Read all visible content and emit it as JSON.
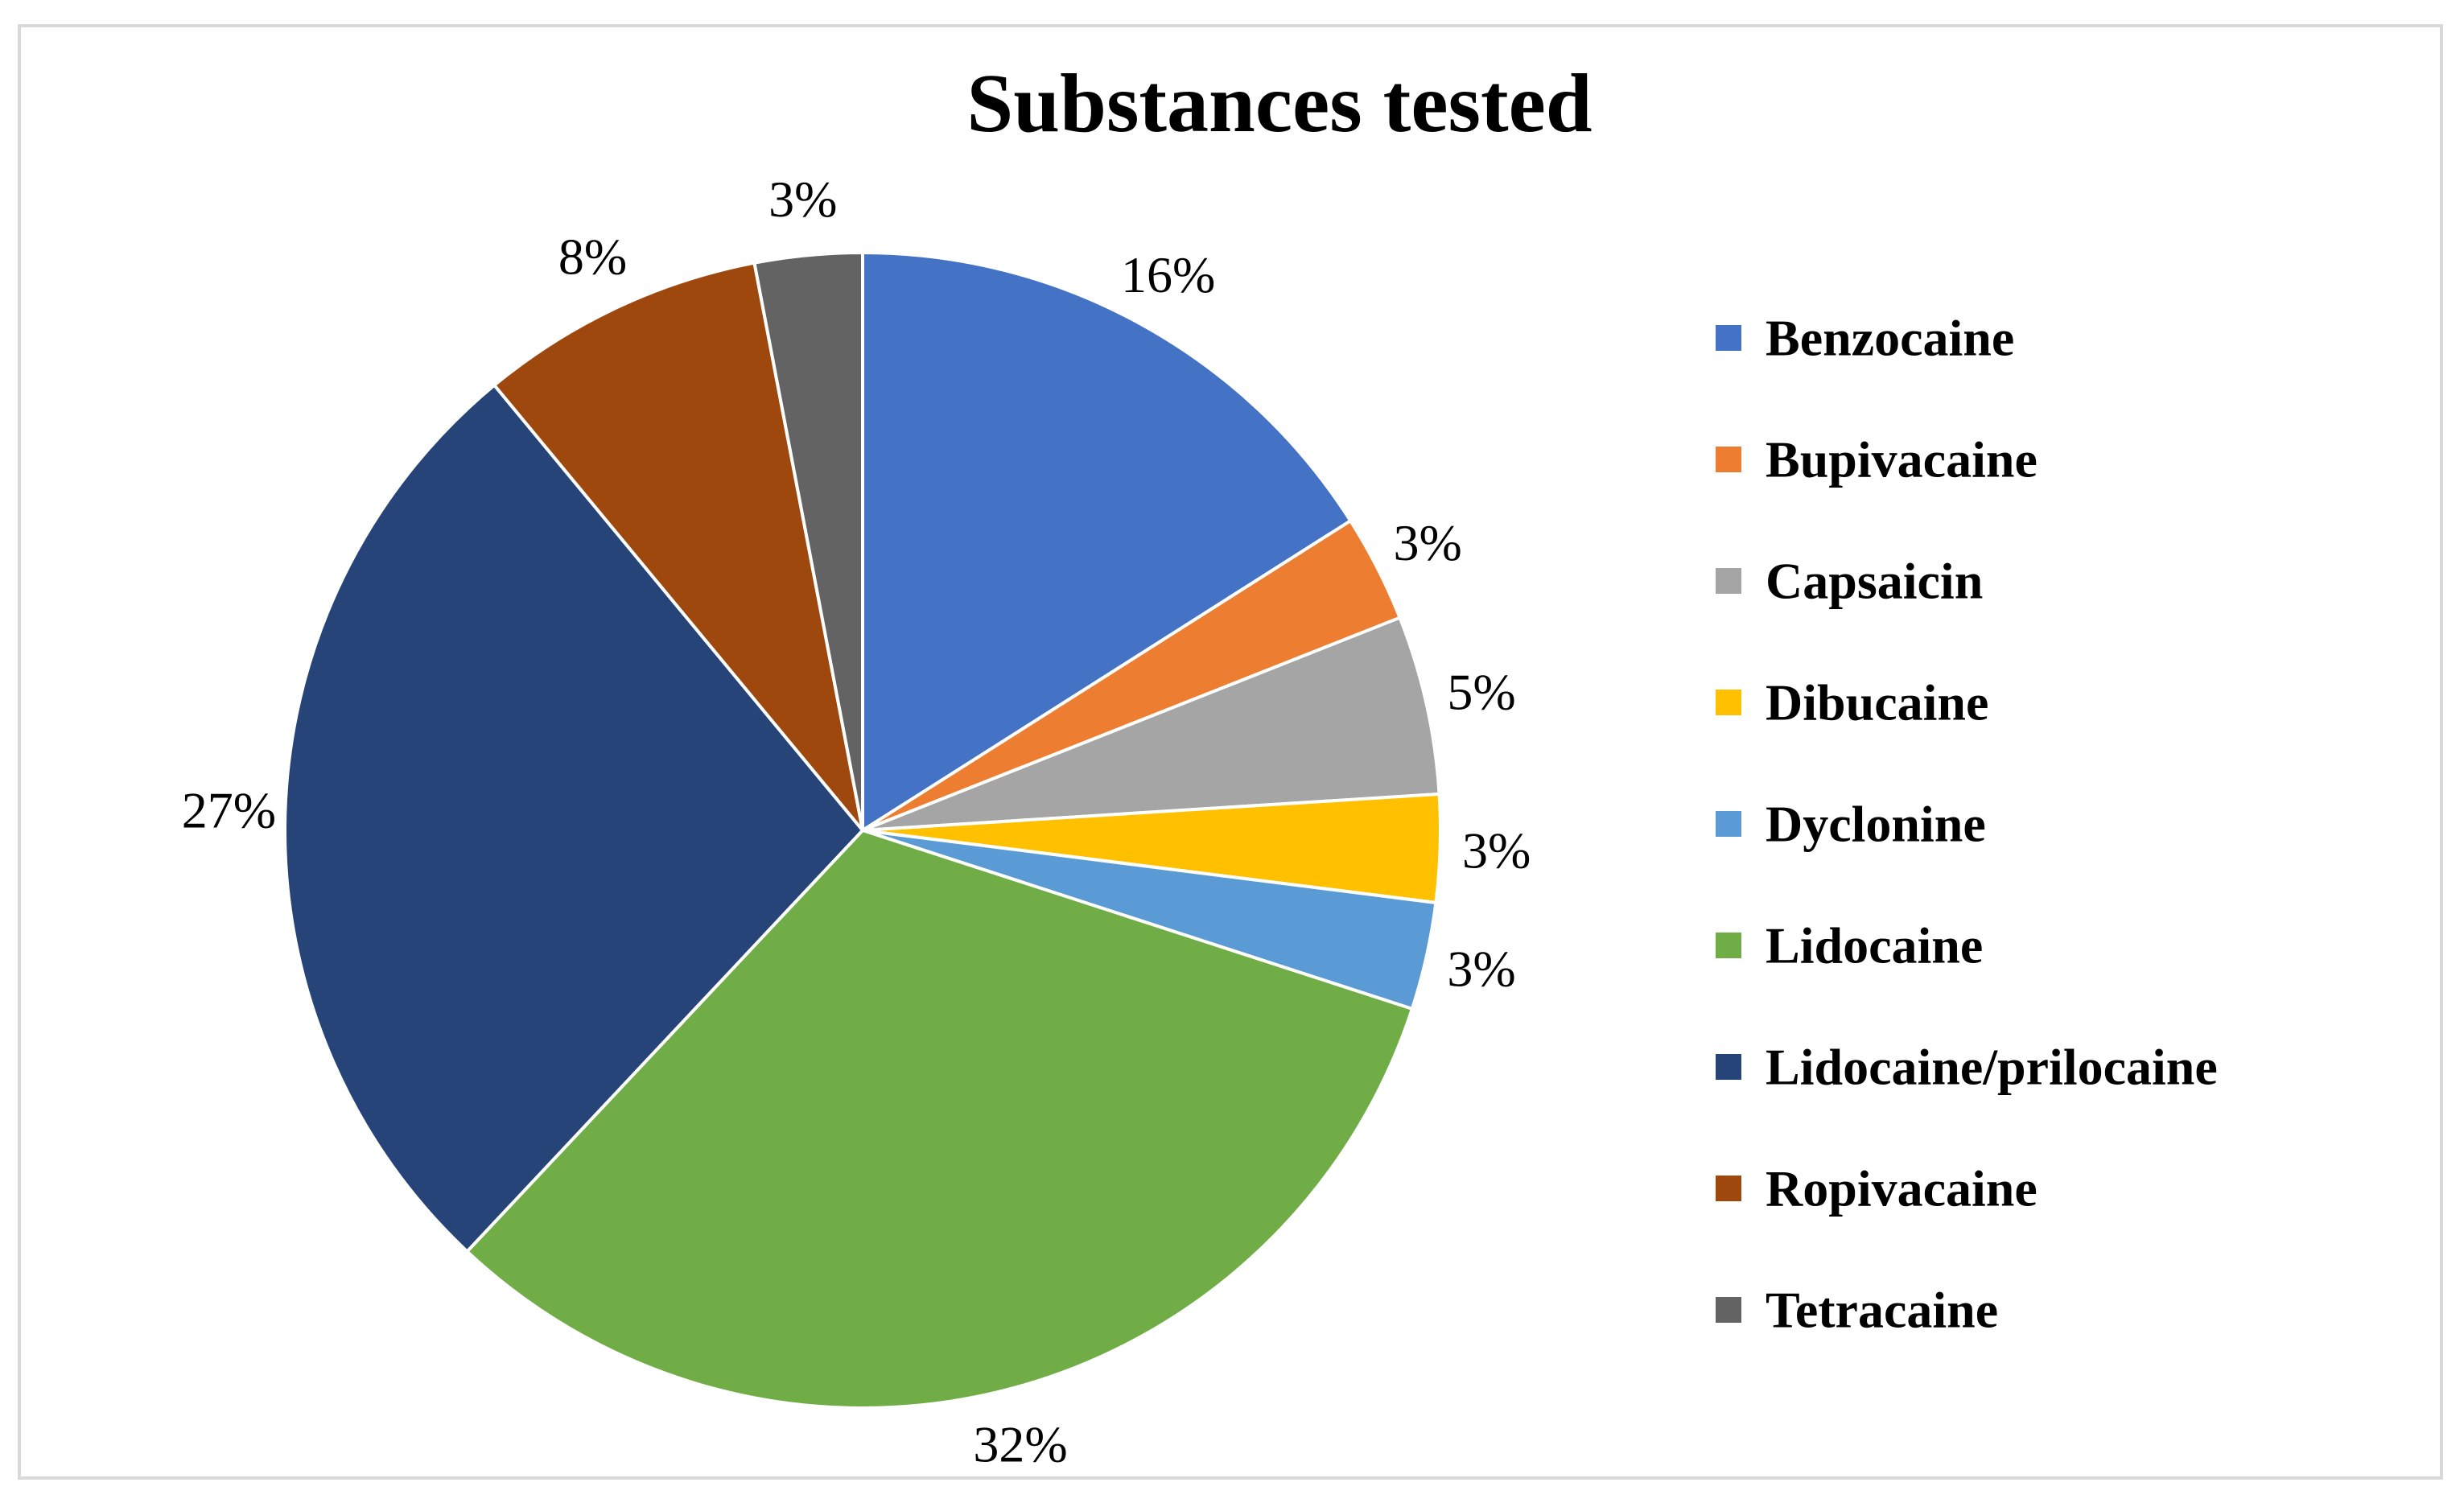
{
  "chart_data": {
    "type": "pie",
    "title": "Substances tested",
    "legend_position": "right",
    "slices": [
      {
        "name": "Benzocaine",
        "value": 16,
        "label": "16%",
        "color": "#4472C4"
      },
      {
        "name": "Bupivacaine",
        "value": 3,
        "label": "3%",
        "color": "#ED7D31"
      },
      {
        "name": "Capsaicin",
        "value": 5,
        "label": "5%",
        "color": "#A5A5A5"
      },
      {
        "name": "Dibucaine",
        "value": 3,
        "label": "3%",
        "color": "#FFC000"
      },
      {
        "name": "Dyclonine",
        "value": 3,
        "label": "3%",
        "color": "#5B9BD5"
      },
      {
        "name": "Lidocaine",
        "value": 32,
        "label": "32%",
        "color": "#70AD47"
      },
      {
        "name": "Lidocaine/prilocaine",
        "value": 27,
        "label": "27%",
        "color": "#264478"
      },
      {
        "name": "Ropivacaine",
        "value": 8,
        "label": "8%",
        "color": "#9E480E"
      },
      {
        "name": "Tetracaine",
        "value": 3,
        "label": "3%",
        "color": "#636363"
      }
    ]
  }
}
